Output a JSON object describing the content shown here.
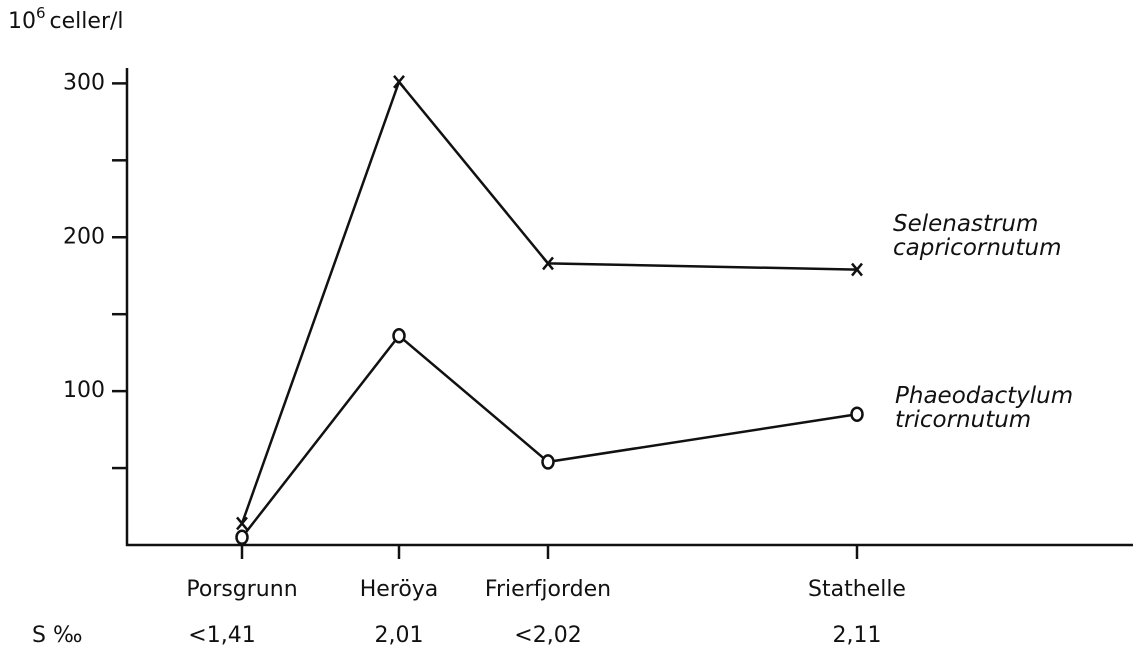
{
  "chart_data": {
    "type": "line",
    "ylabel": {
      "base": "10",
      "exponent": "6",
      "unit": "celler/l"
    },
    "categories": [
      "Porsgrunn",
      "Heröya",
      "Frierfjorden",
      "Stathelle"
    ],
    "salinity_label": "S ‰",
    "salinity": [
      "<1,41",
      "2,01",
      "<2,02",
      "2,11"
    ],
    "series": [
      {
        "name": "Selenastrum capricornutum",
        "color": "#111111",
        "marker": "x",
        "values": [
          14,
          301,
          183,
          179
        ]
      },
      {
        "name": "Phaeodactylum tricornutum",
        "color": "#111111",
        "marker": "o",
        "values": [
          5,
          136,
          54,
          85
        ]
      }
    ],
    "ylim": [
      0,
      310
    ],
    "yticks": [
      100,
      200,
      300
    ],
    "minor_yticks": [
      50,
      150,
      250
    ]
  }
}
